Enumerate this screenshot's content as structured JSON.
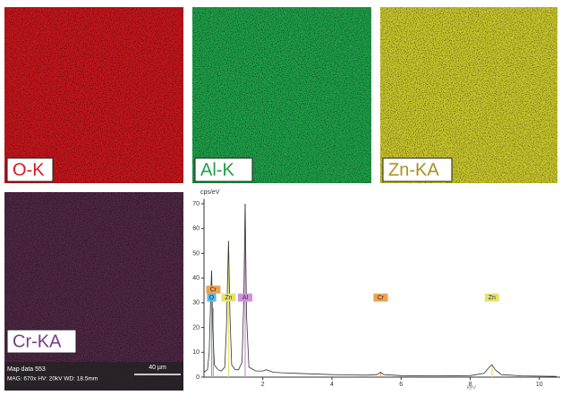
{
  "maps": [
    {
      "label": "O-K",
      "color": "#c4161c",
      "label_color": "#d7191f"
    },
    {
      "label": "Al-K",
      "color": "#1e9e48",
      "label_color": "#1e9e48"
    },
    {
      "label": "Zn-KA",
      "color": "#c9c62c",
      "label_color": "#a8901a"
    },
    {
      "label": "Cr-KA",
      "color": "#4e2743",
      "label_color": "#7a3a8a"
    }
  ],
  "map_info": {
    "line1": "Map data 553",
    "line2": "MAG: 670x  HV: 20kV  WD: 18.5mm",
    "scale": "40 µm"
  },
  "chart_data": {
    "type": "line",
    "y_label": "cps/eV",
    "x_label": "keV",
    "color": "#333333",
    "x": [
      0.3,
      0.4,
      0.45,
      0.5,
      0.52,
      0.55,
      0.6,
      0.7,
      0.8,
      0.9,
      0.95,
      1.01,
      1.05,
      1.1,
      1.2,
      1.3,
      1.4,
      1.45,
      1.49,
      1.53,
      1.6,
      1.8,
      2.0,
      2.1,
      2.3,
      2.5,
      3,
      4,
      5,
      5.3,
      5.41,
      5.5,
      6,
      7,
      8,
      8.4,
      8.55,
      8.63,
      8.72,
      8.9,
      9.5,
      10,
      10.5
    ],
    "values": [
      2,
      3,
      10,
      35,
      43,
      20,
      5,
      3,
      2.5,
      4,
      20,
      55,
      25,
      5,
      3,
      3,
      6,
      30,
      70,
      25,
      4,
      2.5,
      2.5,
      3,
      2,
      1.8,
      1.5,
      1,
      0.8,
      1,
      2,
      1,
      0.6,
      0.5,
      0.6,
      1.5,
      4,
      5,
      3,
      1,
      0.5,
      0.4,
      0.3
    ],
    "peaks": [
      {
        "label": "Cr",
        "energy": 0.57,
        "height": 28,
        "color": "#f0a050"
      },
      {
        "label": "O",
        "energy": 0.52,
        "height": 43,
        "color": "#5ab8e8"
      },
      {
        "label": "Zn",
        "energy": 1.01,
        "height": 55,
        "color": "#e8e070"
      },
      {
        "label": "Al",
        "energy": 1.49,
        "height": 70,
        "color": "#d090d8"
      },
      {
        "label": "Cr",
        "energy": 5.41,
        "height": 2,
        "color": "#f0a050"
      },
      {
        "label": "Zn",
        "energy": 8.63,
        "height": 5,
        "color": "#e8e070"
      }
    ],
    "xlim": [
      0.3,
      10.6
    ],
    "xticks": [
      2,
      4,
      6,
      8,
      10
    ],
    "ylim": [
      0,
      72
    ],
    "yticks": [
      0,
      10,
      20,
      30,
      40,
      50,
      60,
      70
    ]
  }
}
